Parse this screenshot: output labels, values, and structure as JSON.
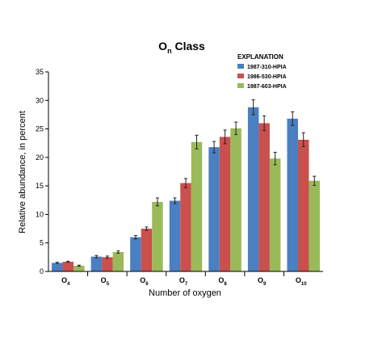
{
  "chart_data": {
    "type": "bar",
    "title": {
      "main": "O",
      "sub": "n",
      "rest": " Class"
    },
    "xlabel": "Number of oxygen",
    "ylabel": "Relative abundance, in percent",
    "ylim": [
      0,
      35
    ],
    "yticks": [
      0,
      5,
      10,
      15,
      20,
      25,
      30,
      35
    ],
    "grid": false,
    "legend": {
      "title": "EXPLANATION",
      "placement": "top-right"
    },
    "categories": [
      {
        "base": "O",
        "sub": "4"
      },
      {
        "base": "O",
        "sub": "5"
      },
      {
        "base": "O",
        "sub": "6"
      },
      {
        "base": "O",
        "sub": "7"
      },
      {
        "base": "O",
        "sub": "8"
      },
      {
        "base": "O",
        "sub": "9"
      },
      {
        "base": "O",
        "sub": "10"
      }
    ],
    "series": [
      {
        "name": "1987-310-HPIA",
        "color": "#4a7fc1",
        "values": [
          1.5,
          2.6,
          6.0,
          12.4,
          21.8,
          28.8,
          26.8
        ],
        "errors": [
          0.1,
          0.2,
          0.3,
          0.5,
          1.0,
          1.3,
          1.2
        ]
      },
      {
        "name": "1986-530-HPIA",
        "color": "#c9504d",
        "values": [
          1.7,
          2.5,
          7.5,
          15.5,
          23.6,
          26.0,
          23.1
        ],
        "errors": [
          0.1,
          0.2,
          0.3,
          0.8,
          1.2,
          1.3,
          1.2
        ]
      },
      {
        "name": "1987-603-HPIA",
        "color": "#9aba59",
        "values": [
          1.0,
          3.4,
          12.2,
          22.7,
          25.1,
          19.8,
          15.9
        ],
        "errors": [
          0.1,
          0.2,
          0.7,
          1.2,
          1.1,
          1.1,
          0.8
        ]
      }
    ]
  }
}
